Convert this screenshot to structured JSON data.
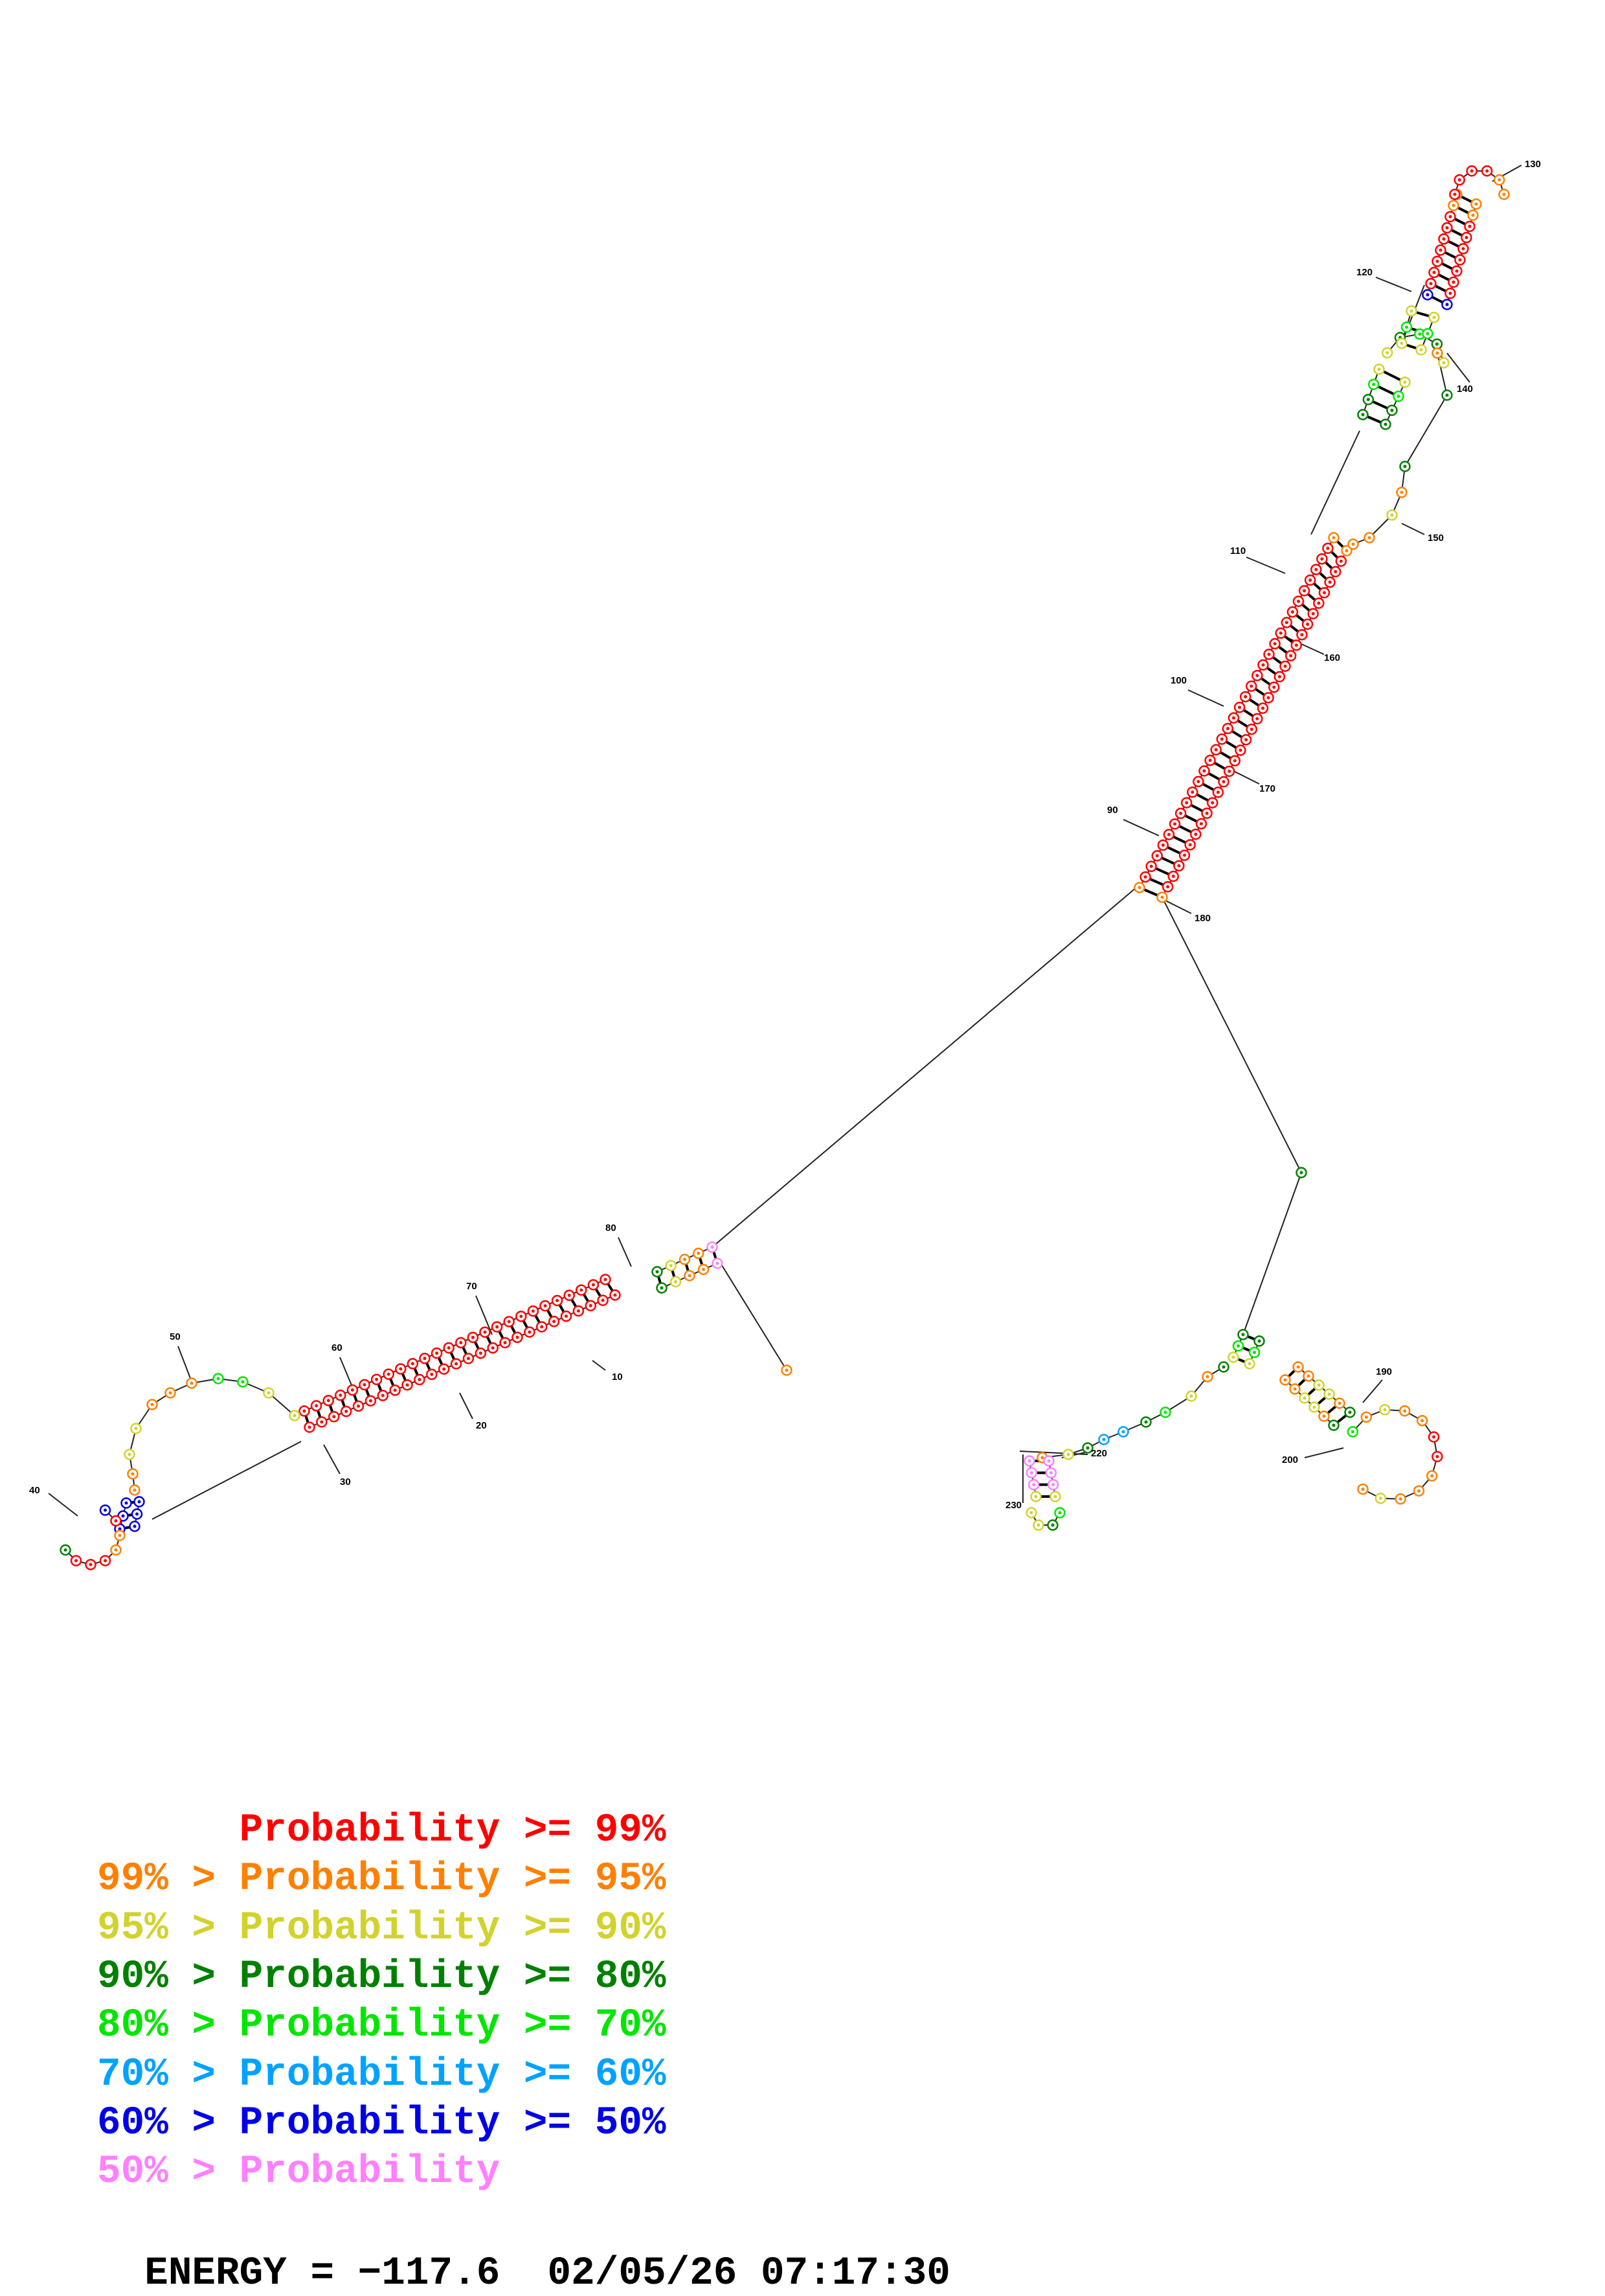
{
  "legend": [
    {
      "text": "      Probability >= 99%",
      "color": "#ff0000"
    },
    {
      "text": "99% > Probability >= 95%",
      "color": "#ff8000"
    },
    {
      "text": "95% > Probability >= 90%",
      "color": "#d2d22e"
    },
    {
      "text": "90% > Probability >= 80%",
      "color": "#008000"
    },
    {
      "text": "80% > Probability >= 70%",
      "color": "#00e600"
    },
    {
      "text": "70% > Probability >= 60%",
      "color": "#00a2ff"
    },
    {
      "text": "60% > Probability >= 50%",
      "color": "#0000e6"
    },
    {
      "text": "50% > Probability",
      "color": "#ff80ff"
    }
  ],
  "energy": {
    "label": "ENERGY = −117.6",
    "timestamp": "02/05/26 07:17:30"
  },
  "position_labels": [
    "10",
    "20",
    "30",
    "40",
    "50",
    "60",
    "70",
    "80",
    "90",
    "100",
    "110",
    "120",
    "130",
    "140",
    "150",
    "160",
    "170",
    "180",
    "190",
    "200",
    "220",
    "230"
  ]
}
